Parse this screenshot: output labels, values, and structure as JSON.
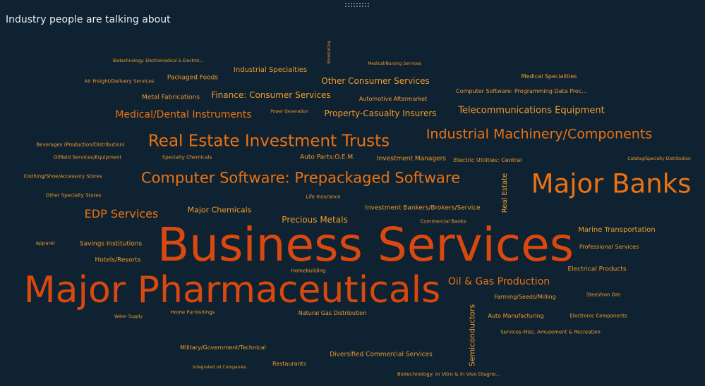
{
  "panel": {
    "title": "Industry people are talking about"
  },
  "colors": {
    "background": "#0f2231",
    "dark_orange": "#d9480f",
    "orange": "#ec7211",
    "light_orange": "#f29b2b"
  },
  "words": [
    {
      "text": "Business Services",
      "size_rank": 1,
      "color": "#d9480f"
    },
    {
      "text": "Major Pharmaceuticals",
      "size_rank": 2,
      "color": "#d9480f"
    },
    {
      "text": "Major Banks",
      "size_rank": 3,
      "color": "#ec7211"
    },
    {
      "text": "Computer Software: Prepackaged Software",
      "size_rank": 4,
      "color": "#ec7211"
    },
    {
      "text": "Real Estate Investment Trusts",
      "size_rank": 5,
      "color": "#ec7211"
    },
    {
      "text": "Industrial Machinery/Components",
      "size_rank": 6,
      "color": "#ec7211"
    },
    {
      "text": "EDP Services",
      "size_rank": 7,
      "color": "#ec7211"
    },
    {
      "text": "Medical/Dental Instruments",
      "size_rank": 8,
      "color": "#ec7211"
    },
    {
      "text": "Oil & Gas Production",
      "size_rank": 9,
      "color": "#ec7211"
    },
    {
      "text": "Telecommunications Equipment",
      "size_rank": 10,
      "color": "#f29b2b"
    },
    {
      "text": "Property-Casualty Insurers",
      "size_rank": 11,
      "color": "#f29b2b"
    },
    {
      "text": "Other Consumer Services",
      "size_rank": 12,
      "color": "#f29b2b"
    },
    {
      "text": "Finance: Consumer Services",
      "size_rank": 13,
      "color": "#f29b2b"
    },
    {
      "text": "Precious Metals",
      "size_rank": 14,
      "color": "#f29b2b"
    },
    {
      "text": "Major Chemicals",
      "size_rank": 15,
      "color": "#f29b2b"
    },
    {
      "text": "Semiconductors",
      "size_rank": 16,
      "color": "#f29b2b"
    },
    {
      "text": "Real Estate",
      "size_rank": 17,
      "color": "#f29b2b"
    },
    {
      "text": "Marine Transportation",
      "size_rank": 18,
      "color": "#f29b2b"
    },
    {
      "text": "Industrial Specialties",
      "size_rank": 19,
      "color": "#f29b2b"
    },
    {
      "text": "Packaged Foods",
      "size_rank": 20,
      "color": "#f29b2b"
    },
    {
      "text": "Metal Fabrications",
      "size_rank": 21,
      "color": "#f29b2b"
    },
    {
      "text": "Savings Institutions",
      "size_rank": 22,
      "color": "#f29b2b"
    },
    {
      "text": "Hotels/Resorts",
      "size_rank": 23,
      "color": "#f29b2b"
    },
    {
      "text": "Investment Bankers/Brokers/Service",
      "size_rank": 24,
      "color": "#f29b2b"
    },
    {
      "text": "Investment Managers",
      "size_rank": 25,
      "color": "#f29b2b"
    },
    {
      "text": "Auto Parts:O.E.M.",
      "size_rank": 26,
      "color": "#f29b2b"
    },
    {
      "text": "Electrical Products",
      "size_rank": 27,
      "color": "#f29b2b"
    },
    {
      "text": "Professional Services",
      "size_rank": 28,
      "color": "#f29b2b"
    },
    {
      "text": "Farming/Seeds/Milling",
      "size_rank": 29,
      "color": "#f29b2b"
    },
    {
      "text": "Auto Manufacturing",
      "size_rank": 30,
      "color": "#f29b2b"
    },
    {
      "text": "Diversified Commercial Services",
      "size_rank": 31,
      "color": "#f29b2b"
    },
    {
      "text": "Military/Government/Technical",
      "size_rank": 32,
      "color": "#f29b2b"
    },
    {
      "text": "Restaurants",
      "size_rank": 33,
      "color": "#f29b2b"
    },
    {
      "text": "Natural Gas Distribution",
      "size_rank": 34,
      "color": "#f29b2b"
    },
    {
      "text": "Electric Utilities: Central",
      "size_rank": 35,
      "color": "#f29b2b"
    },
    {
      "text": "Automotive Aftermarket",
      "size_rank": 36,
      "color": "#f29b2b"
    },
    {
      "text": "Medical Specialities",
      "size_rank": 37,
      "color": "#f29b2b"
    },
    {
      "text": "Computer Software: Programming Data Proc...",
      "size_rank": 38,
      "color": "#f29b2b"
    },
    {
      "text": "Air Freight/Delivery Services",
      "size_rank": 39,
      "color": "#f29b2b"
    },
    {
      "text": "Apparel",
      "size_rank": 40,
      "color": "#f29b2b"
    },
    {
      "text": "Other Specialty Stores",
      "size_rank": 41,
      "color": "#f29b2b"
    },
    {
      "text": "Clothing/Shoe/Accessory Stores",
      "size_rank": 42,
      "color": "#f29b2b"
    },
    {
      "text": "Oilfield Services/Equipment",
      "size_rank": 43,
      "color": "#f29b2b"
    },
    {
      "text": "Beverages (Production/Distribution)",
      "size_rank": 44,
      "color": "#f29b2b"
    },
    {
      "text": "Specialty Chemicals",
      "size_rank": 45,
      "color": "#f29b2b"
    },
    {
      "text": "Life Insurance",
      "size_rank": 46,
      "color": "#f29b2b"
    },
    {
      "text": "Commercial Banks",
      "size_rank": 47,
      "color": "#f29b2b"
    },
    {
      "text": "Homebuilding",
      "size_rank": 48,
      "color": "#f29b2b"
    },
    {
      "text": "Steel/Iron Ore",
      "size_rank": 49,
      "color": "#f29b2b"
    },
    {
      "text": "Electronic Components",
      "size_rank": 50,
      "color": "#f29b2b"
    },
    {
      "text": "Services-Misc. Amusement & Recreation",
      "size_rank": 51,
      "color": "#f29b2b"
    },
    {
      "text": "Home Furnishings",
      "size_rank": 52,
      "color": "#f29b2b"
    },
    {
      "text": "Water Supply",
      "size_rank": 53,
      "color": "#f29b2b"
    },
    {
      "text": "Integrated oil Companies",
      "size_rank": 54,
      "color": "#f29b2b"
    },
    {
      "text": "Biotechnology: In Vitro & In Vivo Diagno...",
      "size_rank": 55,
      "color": "#f29b2b"
    },
    {
      "text": "Biotechnology: Electromedical & Electrot...",
      "size_rank": 56,
      "color": "#f29b2b"
    },
    {
      "text": "Medical/Nursing Services",
      "size_rank": 57,
      "color": "#f29b2b"
    },
    {
      "text": "Power Generation",
      "size_rank": 58,
      "color": "#f29b2b"
    },
    {
      "text": "Catalog/Specialty Distribution",
      "size_rank": 59,
      "color": "#f29b2b"
    },
    {
      "text": "Broadcasting",
      "size_rank": 60,
      "color": "#f29b2b"
    }
  ]
}
